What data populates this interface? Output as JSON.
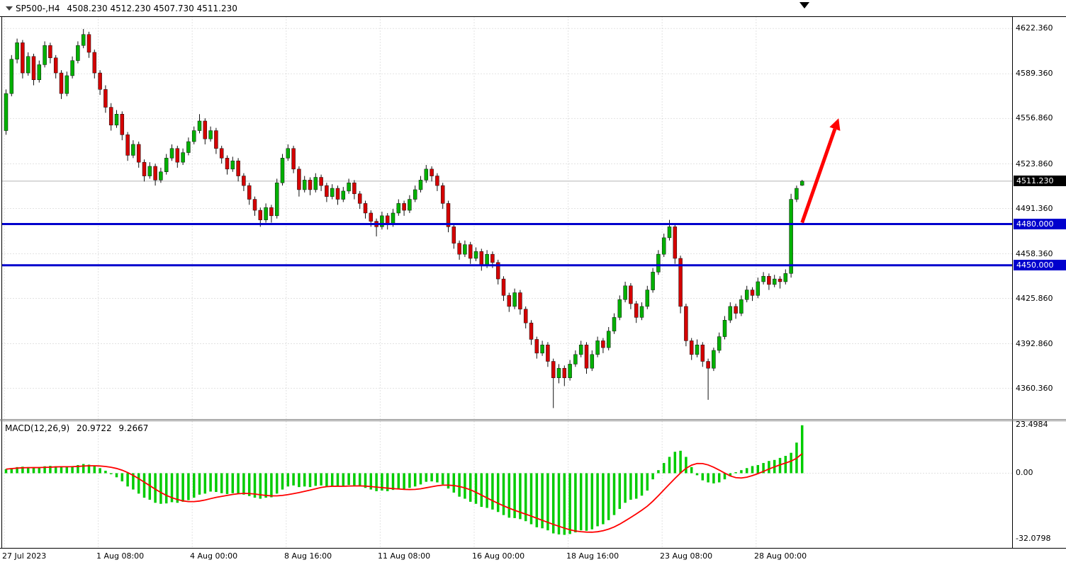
{
  "header": {
    "symbol_period": "SP500-,H4",
    "ohlc_text": "4508.230 4512.230 4507.730 4511.230",
    "ohlc": {
      "open": "4508.230",
      "high": "4512.230",
      "low": "4507.730",
      "close": "4511.230"
    }
  },
  "chart_data": {
    "type": "candlestick_with_macd",
    "title": "SP500-,H4",
    "price_axis_ticks": [
      "4622.360",
      "4589.360",
      "4556.860",
      "4523.860",
      "4491.360",
      "4458.360",
      "4425.860",
      "4392.860",
      "4360.360"
    ],
    "price_range": {
      "max": 4631,
      "min": 4338
    },
    "last_price": {
      "label": "4511.230",
      "value": 4511.23
    },
    "horizontal_lines": [
      {
        "value": 4480.0,
        "label": "4480.000",
        "color": "#0000cd"
      },
      {
        "value": 4450.0,
        "label": "4450.000",
        "color": "#0000cd"
      }
    ],
    "annotation_arrow": {
      "from": {
        "candle": 144.0,
        "price": 4481
      },
      "to": {
        "candle": 150.6,
        "price": 4557
      },
      "color": "#ff0000"
    },
    "time_axis_ticks": [
      {
        "label": "27 Jul 2023",
        "candle": 0
      },
      {
        "label": "1 Aug 08:00",
        "candle": 17
      },
      {
        "label": "4 Aug 00:00",
        "candle": 34
      },
      {
        "label": "8 Aug 16:00",
        "candle": 51
      },
      {
        "label": "11 Aug 08:00",
        "candle": 68
      },
      {
        "label": "16 Aug 00:00",
        "candle": 85
      },
      {
        "label": "18 Aug 16:00",
        "candle": 102
      },
      {
        "label": "23 Aug 08:00",
        "candle": 119
      },
      {
        "label": "28 Aug 00:00",
        "candle": 136
      }
    ],
    "colors": {
      "up": "#00b000",
      "down": "#d40000",
      "wick": "#111111",
      "grid": "#c6c6c6",
      "frame": "#000000",
      "last_price_line": "#b5b5b5",
      "background": "#ffffff"
    },
    "candles": [
      [
        4548,
        4578,
        4545,
        4575
      ],
      [
        4575,
        4603,
        4573,
        4600
      ],
      [
        4600,
        4615,
        4597,
        4612
      ],
      [
        4612,
        4614,
        4586,
        4590
      ],
      [
        4590,
        4605,
        4588,
        4602
      ],
      [
        4602,
        4604,
        4581,
        4585
      ],
      [
        4585,
        4599,
        4583,
        4596
      ],
      [
        4596,
        4613,
        4594,
        4610
      ],
      [
        4610,
        4612,
        4597,
        4601
      ],
      [
        4601,
        4603,
        4586,
        4590
      ],
      [
        4590,
        4592,
        4571,
        4575
      ],
      [
        4575,
        4591,
        4573,
        4588
      ],
      [
        4588,
        4602,
        4586,
        4599
      ],
      [
        4599,
        4613,
        4597,
        4610
      ],
      [
        4610,
        4622,
        4608,
        4618
      ],
      [
        4618,
        4620,
        4601,
        4605
      ],
      [
        4605,
        4607,
        4586,
        4590
      ],
      [
        4590,
        4592,
        4574,
        4578
      ],
      [
        4578,
        4581,
        4561,
        4565
      ],
      [
        4565,
        4568,
        4548,
        4552
      ],
      [
        4552,
        4563,
        4550,
        4560
      ],
      [
        4560,
        4562,
        4541,
        4545
      ],
      [
        4545,
        4547,
        4526,
        4530
      ],
      [
        4530,
        4541,
        4528,
        4538
      ],
      [
        4538,
        4540,
        4521,
        4525
      ],
      [
        4525,
        4527,
        4511,
        4515
      ],
      [
        4515,
        4525,
        4513,
        4522
      ],
      [
        4522,
        4524,
        4508,
        4512
      ],
      [
        4512,
        4521,
        4510,
        4518
      ],
      [
        4518,
        4531,
        4516,
        4528
      ],
      [
        4528,
        4538,
        4526,
        4535
      ],
      [
        4535,
        4537,
        4521,
        4525
      ],
      [
        4525,
        4535,
        4523,
        4532
      ],
      [
        4532,
        4543,
        4530,
        4540
      ],
      [
        4540,
        4551,
        4538,
        4548
      ],
      [
        4548,
        4560,
        4546,
        4555
      ],
      [
        4555,
        4557,
        4538,
        4542
      ],
      [
        4542,
        4551,
        4540,
        4548
      ],
      [
        4548,
        4550,
        4531,
        4535
      ],
      [
        4535,
        4537,
        4524,
        4528
      ],
      [
        4528,
        4530,
        4516,
        4520
      ],
      [
        4520,
        4529,
        4518,
        4526
      ],
      [
        4526,
        4528,
        4511,
        4515
      ],
      [
        4515,
        4517,
        4504,
        4508
      ],
      [
        4508,
        4510,
        4494,
        4498
      ],
      [
        4498,
        4500,
        4486,
        4490
      ],
      [
        4490,
        4492,
        4478,
        4483
      ],
      [
        4483,
        4495,
        4481,
        4492
      ],
      [
        4492,
        4494,
        4481,
        4486
      ],
      [
        4486,
        4513,
        4484,
        4510
      ],
      [
        4510,
        4531,
        4508,
        4528
      ],
      [
        4528,
        4538,
        4526,
        4535
      ],
      [
        4535,
        4537,
        4517,
        4520
      ],
      [
        4520,
        4522,
        4500,
        4505
      ],
      [
        4505,
        4515,
        4503,
        4512
      ],
      [
        4512,
        4514,
        4501,
        4505
      ],
      [
        4505,
        4517,
        4503,
        4514
      ],
      [
        4514,
        4516,
        4504,
        4508
      ],
      [
        4508,
        4510,
        4496,
        4500
      ],
      [
        4500,
        4509,
        4498,
        4506
      ],
      [
        4506,
        4508,
        4494,
        4498
      ],
      [
        4498,
        4507,
        4496,
        4504
      ],
      [
        4504,
        4513,
        4502,
        4510
      ],
      [
        4510,
        4512,
        4498,
        4502
      ],
      [
        4502,
        4504,
        4491,
        4495
      ],
      [
        4495,
        4497,
        4484,
        4488
      ],
      [
        4488,
        4490,
        4478,
        4482
      ],
      [
        4482,
        4484,
        4471,
        4478
      ],
      [
        4478,
        4489,
        4476,
        4486
      ],
      [
        4486,
        4488,
        4476,
        4480
      ],
      [
        4480,
        4491,
        4478,
        4488
      ],
      [
        4488,
        4498,
        4486,
        4495
      ],
      [
        4495,
        4497,
        4486,
        4490
      ],
      [
        4490,
        4501,
        4488,
        4498
      ],
      [
        4498,
        4508,
        4496,
        4505
      ],
      [
        4505,
        4515,
        4503,
        4512
      ],
      [
        4512,
        4523,
        4510,
        4520
      ],
      [
        4520,
        4522,
        4511,
        4515
      ],
      [
        4515,
        4517,
        4504,
        4508
      ],
      [
        4508,
        4510,
        4491,
        4495
      ],
      [
        4495,
        4497,
        4474,
        4478
      ],
      [
        4478,
        4480,
        4462,
        4466
      ],
      [
        4466,
        4468,
        4454,
        4458
      ],
      [
        4458,
        4468,
        4456,
        4465
      ],
      [
        4465,
        4467,
        4451,
        4455
      ],
      [
        4455,
        4463,
        4453,
        4460
      ],
      [
        4460,
        4462,
        4446,
        4450
      ],
      [
        4450,
        4461,
        4448,
        4458
      ],
      [
        4458,
        4460,
        4448,
        4452
      ],
      [
        4452,
        4454,
        4436,
        4440
      ],
      [
        4440,
        4442,
        4424,
        4428
      ],
      [
        4428,
        4430,
        4416,
        4420
      ],
      [
        4420,
        4433,
        4418,
        4430
      ],
      [
        4430,
        4432,
        4414,
        4418
      ],
      [
        4418,
        4420,
        4404,
        4408
      ],
      [
        4408,
        4410,
        4392,
        4396
      ],
      [
        4396,
        4398,
        4382,
        4386
      ],
      [
        4386,
        4395,
        4384,
        4392
      ],
      [
        4392,
        4394,
        4376,
        4380
      ],
      [
        4380,
        4382,
        4346,
        4368
      ],
      [
        4368,
        4378,
        4364,
        4375
      ],
      [
        4375,
        4377,
        4362,
        4368
      ],
      [
        4368,
        4381,
        4366,
        4378
      ],
      [
        4378,
        4388,
        4376,
        4385
      ],
      [
        4385,
        4395,
        4383,
        4392
      ],
      [
        4392,
        4394,
        4371,
        4375
      ],
      [
        4375,
        4388,
        4373,
        4385
      ],
      [
        4385,
        4398,
        4383,
        4395
      ],
      [
        4395,
        4397,
        4386,
        4390
      ],
      [
        4390,
        4405,
        4388,
        4402
      ],
      [
        4402,
        4415,
        4400,
        4412
      ],
      [
        4412,
        4428,
        4410,
        4425
      ],
      [
        4425,
        4438,
        4423,
        4435
      ],
      [
        4435,
        4437,
        4418,
        4422
      ],
      [
        4422,
        4424,
        4408,
        4412
      ],
      [
        4412,
        4423,
        4410,
        4420
      ],
      [
        4420,
        4435,
        4418,
        4432
      ],
      [
        4432,
        4448,
        4430,
        4445
      ],
      [
        4445,
        4461,
        4443,
        4458
      ],
      [
        4458,
        4473,
        4456,
        4470
      ],
      [
        4470,
        4483,
        4468,
        4478
      ],
      [
        4478,
        4480,
        4451,
        4455
      ],
      [
        4455,
        4457,
        4415,
        4420
      ],
      [
        4420,
        4422,
        4391,
        4395
      ],
      [
        4395,
        4397,
        4381,
        4385
      ],
      [
        4385,
        4396,
        4383,
        4392
      ],
      [
        4392,
        4394,
        4376,
        4380
      ],
      [
        4380,
        4382,
        4352,
        4375
      ],
      [
        4375,
        4390,
        4373,
        4388
      ],
      [
        4388,
        4401,
        4386,
        4398
      ],
      [
        4398,
        4413,
        4396,
        4410
      ],
      [
        4410,
        4423,
        4408,
        4420
      ],
      [
        4420,
        4422,
        4411,
        4415
      ],
      [
        4415,
        4428,
        4413,
        4425
      ],
      [
        4425,
        4435,
        4423,
        4432
      ],
      [
        4432,
        4434,
        4424,
        4428
      ],
      [
        4428,
        4441,
        4426,
        4438
      ],
      [
        4438,
        4445,
        4436,
        4442
      ],
      [
        4442,
        4444,
        4432,
        4436
      ],
      [
        4436,
        4443,
        4434,
        4440
      ],
      [
        4440,
        4442,
        4433,
        4438
      ],
      [
        4438,
        4447,
        4436,
        4444
      ],
      [
        4444,
        4502,
        4441,
        4498
      ],
      [
        4498,
        4508,
        4496,
        4506
      ],
      [
        4508.2,
        4512.2,
        4507.7,
        4511.2
      ]
    ],
    "macd": {
      "label": "MACD(12,26,9)",
      "macd_value": "20.9722",
      "signal_value": "9.2667",
      "axis_ticks": [
        "23.4984",
        "0.00",
        "-32.0798"
      ],
      "range": {
        "max": 25.5,
        "min": -36.6
      },
      "histogram_color": "#00cc00",
      "signal_color": "#ff0000",
      "signal_period": 9,
      "histogram": [
        2.0,
        2.5,
        3.0,
        3.2,
        3.0,
        2.8,
        3.0,
        3.4,
        3.6,
        3.4,
        3.0,
        3.2,
        3.5,
        4.0,
        4.5,
        4.2,
        3.5,
        2.5,
        1.2,
        -0.5,
        -2.0,
        -4.0,
        -6.5,
        -8.0,
        -10.0,
        -12.0,
        -13.0,
        -14.5,
        -15.0,
        -14.8,
        -14.2,
        -14.5,
        -14.0,
        -13.2,
        -12.0,
        -10.5,
        -10.0,
        -9.0,
        -9.2,
        -9.8,
        -10.2,
        -9.8,
        -10.0,
        -10.5,
        -11.2,
        -12.0,
        -12.5,
        -12.0,
        -11.8,
        -10.0,
        -8.0,
        -6.5,
        -6.0,
        -6.8,
        -6.5,
        -6.8,
        -6.2,
        -6.0,
        -6.5,
        -6.2,
        -6.5,
        -6.2,
        -5.8,
        -6.0,
        -6.5,
        -7.2,
        -8.0,
        -8.8,
        -8.5,
        -8.8,
        -8.2,
        -7.5,
        -7.8,
        -7.2,
        -6.5,
        -5.5,
        -4.2,
        -4.0,
        -4.5,
        -5.5,
        -7.5,
        -9.5,
        -11.5,
        -12.5,
        -14.0,
        -15.0,
        -16.5,
        -17.0,
        -17.8,
        -19.0,
        -20.5,
        -21.8,
        -22.0,
        -22.5,
        -23.5,
        -25.0,
        -26.5,
        -27.0,
        -28.0,
        -29.5,
        -30.0,
        -30.2,
        -29.8,
        -29.0,
        -28.0,
        -28.2,
        -27.5,
        -26.0,
        -25.0,
        -23.0,
        -20.5,
        -17.5,
        -14.5,
        -13.0,
        -12.5,
        -11.0,
        -8.5,
        -3.0,
        1.5,
        5.0,
        8.0,
        10.5,
        11.0,
        8.0,
        3.0,
        -1.0,
        -3.5,
        -4.5,
        -5.0,
        -4.5,
        -3.0,
        -1.5,
        0.5,
        1.5,
        2.5,
        3.5,
        4.0,
        5.0,
        6.0,
        6.5,
        7.5,
        8.5,
        10.0,
        15.0,
        23.5
      ]
    }
  }
}
